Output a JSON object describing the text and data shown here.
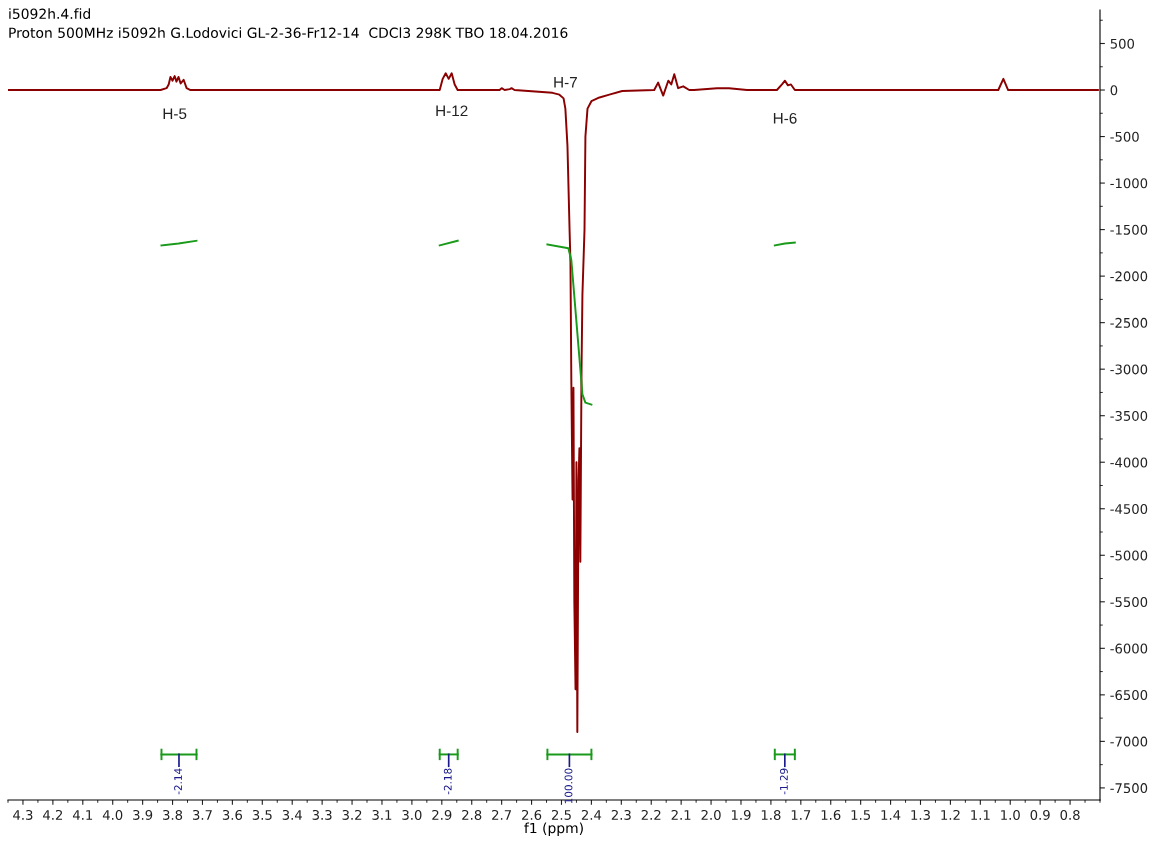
{
  "chart_data": {
    "type": "line",
    "title": "i5092h.4.fid",
    "subtitle": "Proton 500MHz i5092h G.Lodovici GL-2-36-Fr12-14  CDCl3 298K TBO 18.04.2016",
    "xlabel": "f1 (ppm)",
    "xlim": [
      4.35,
      0.7
    ],
    "xticks": [
      4.3,
      4.2,
      4.1,
      {
        "value": 4.0,
        "label": "4.0"
      },
      3.9,
      3.8,
      3.7,
      3.6,
      3.5,
      3.4,
      3.3,
      3.2,
      3.1,
      {
        "value": 3.0,
        "label": "3.0"
      },
      2.9,
      2.8,
      2.7,
      2.6,
      2.5,
      2.4,
      2.3,
      2.2,
      2.1,
      {
        "value": 2.0,
        "label": "2.0"
      },
      1.9,
      1.8,
      1.7,
      1.6,
      1.5,
      1.4,
      1.3,
      1.2,
      1.1,
      {
        "value": 1.0,
        "label": "1.0"
      },
      0.9,
      0.8
    ],
    "ylim": [
      -7630,
      860
    ],
    "yticks": [
      500,
      0,
      -500,
      -1000,
      -1500,
      -2000,
      -2500,
      -3000,
      -3500,
      -4000,
      -4500,
      -5000,
      -5500,
      -6000,
      -6500,
      -7000,
      -7500
    ],
    "grid": false,
    "legend": false,
    "series": [
      {
        "color": "#8b0000",
        "x": [
          4.347,
          3.84,
          3.82,
          3.813,
          3.807,
          3.8,
          3.793,
          3.787,
          3.78,
          3.773,
          3.763,
          3.753,
          3.74,
          2.907,
          2.897,
          2.887,
          2.877,
          2.867,
          2.857,
          2.847,
          2.707,
          2.7,
          2.69,
          2.673,
          2.667,
          2.657,
          2.53,
          2.507,
          2.493,
          2.487,
          2.48,
          2.473,
          2.47,
          2.467,
          2.463,
          2.46,
          2.457,
          2.453,
          2.45,
          2.447,
          2.443,
          2.44,
          2.437,
          2.433,
          2.43,
          2.427,
          2.423,
          2.42,
          2.413,
          2.4,
          2.373,
          2.34,
          2.297,
          2.19,
          2.177,
          2.16,
          2.143,
          2.133,
          2.123,
          2.11,
          2.093,
          2.073,
          2.057,
          1.98,
          1.94,
          1.88,
          1.78,
          1.763,
          1.753,
          1.743,
          1.733,
          1.72,
          1.04,
          1.023,
          1.007,
          0.707
        ],
        "values": [
          0,
          0,
          20,
          60,
          140,
          100,
          150,
          90,
          140,
          70,
          110,
          20,
          0,
          0,
          120,
          180,
          120,
          180,
          60,
          0,
          0,
          20,
          0,
          10,
          20,
          0,
          -30,
          -50,
          -90,
          -200,
          -600,
          -1500,
          -1850,
          -3150,
          -4400,
          -3200,
          -5500,
          -6440,
          -4000,
          -6900,
          -4200,
          -3850,
          -5070,
          -3000,
          -2200,
          -1900,
          -1500,
          -500,
          -200,
          -120,
          -80,
          -50,
          -10,
          0,
          80,
          -60,
          100,
          60,
          170,
          20,
          40,
          0,
          0,
          20,
          20,
          0,
          0,
          60,
          100,
          50,
          60,
          0,
          0,
          120,
          0,
          0
        ]
      },
      {
        "color": "#1a9a1a",
        "x": [
          3.837,
          3.78,
          3.72
        ],
        "values": [
          -1670,
          -1650,
          -1620
        ]
      },
      {
        "color": "#1a9a1a",
        "x": [
          2.907,
          2.847
        ],
        "values": [
          -1670,
          -1620
        ]
      },
      {
        "color": "#1a9a1a",
        "x": [
          2.547,
          2.477,
          2.467,
          2.43,
          2.42,
          2.4
        ],
        "values": [
          -1660,
          -1700,
          -1830,
          -3270,
          -3360,
          -3380
        ]
      },
      {
        "color": "#1a9a1a",
        "x": [
          1.787,
          1.753,
          1.72
        ],
        "values": [
          -1670,
          -1650,
          -1640
        ]
      }
    ],
    "annotations": [
      {
        "text": "H-5",
        "x": 3.793,
        "y": 150
      },
      {
        "text": "H-12",
        "x": 2.867,
        "y": 180
      },
      {
        "text": "H-7",
        "x": 2.487,
        "y": -200
      },
      {
        "text": "H-6",
        "x": 1.753,
        "y": 100
      },
      "-2.14",
      "-2.18",
      "100.00",
      "-1.29"
    ]
  }
}
